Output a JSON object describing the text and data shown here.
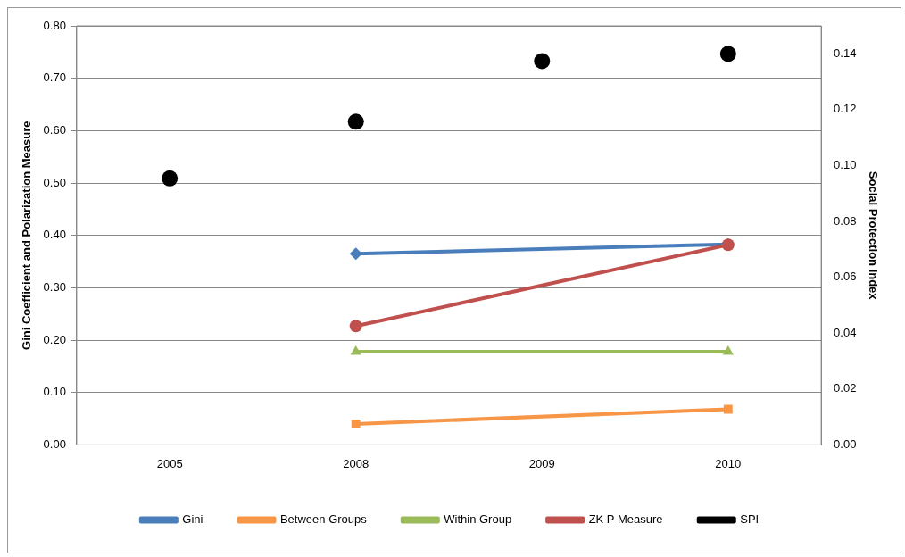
{
  "chart_data": {
    "type": "line",
    "categories": [
      "2005",
      "2008",
      "2009",
      "2010"
    ],
    "ylabel": "Gini Coefficient and Polarization Measure",
    "y2label": "Social Protection Index",
    "ylim": [
      0,
      0.8
    ],
    "yticks": [
      {
        "value": 0,
        "label": "0.00"
      },
      {
        "value": 0.1,
        "label": "0.10"
      },
      {
        "value": 0.2,
        "label": "0.20"
      },
      {
        "value": 0.3,
        "label": "0.30"
      },
      {
        "value": 0.4,
        "label": "0.40"
      },
      {
        "value": 0.5,
        "label": "0.50"
      },
      {
        "value": 0.6,
        "label": "0.60"
      },
      {
        "value": 0.7,
        "label": "0.70"
      },
      {
        "value": 0.8,
        "label": "0.80"
      }
    ],
    "y2lim": [
      0,
      0.15
    ],
    "y2ticks": [
      {
        "value": 0,
        "label": "0.00"
      },
      {
        "value": 0.02,
        "label": "0.02"
      },
      {
        "value": 0.04,
        "label": "0.04"
      },
      {
        "value": 0.06,
        "label": "0.06"
      },
      {
        "value": 0.08,
        "label": "0.08"
      },
      {
        "value": 0.1,
        "label": "0.10"
      },
      {
        "value": 0.12,
        "label": "0.12"
      },
      {
        "value": 0.14,
        "label": "0.14"
      }
    ],
    "grid": "y",
    "legend": "bottom",
    "line_style": "solid",
    "series": [
      {
        "name": "Gini",
        "color": "#4a7ebb",
        "marker": "diamond",
        "values": [
          null,
          0.365,
          null,
          0.383
        ]
      },
      {
        "name": "Between Groups",
        "color": "#f79646",
        "marker": "square",
        "values": [
          null,
          0.04,
          null,
          0.068
        ]
      },
      {
        "name": "Within Group",
        "color": "#9bbb59",
        "marker": "triangle",
        "values": [
          null,
          0.178,
          null,
          0.178
        ]
      },
      {
        "name": "ZK P Measure",
        "color": "#c0504d",
        "marker": "circle",
        "values": [
          null,
          0.227,
          null,
          0.382
        ]
      },
      {
        "name": "SPI",
        "type": "scatter",
        "axis": "y2",
        "color": "#000000",
        "marker": "circle",
        "values": [
          0.0954,
          0.1157,
          0.1374,
          0.14
        ]
      }
    ]
  }
}
